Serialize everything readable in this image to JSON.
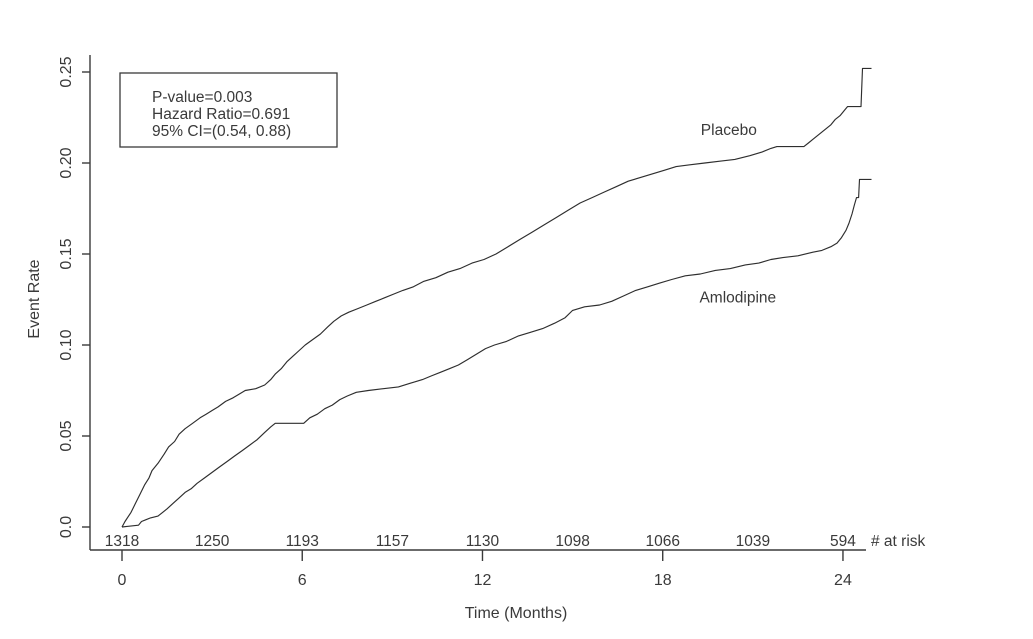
{
  "chart_data": {
    "type": "line",
    "title": "",
    "xlabel": "Time (Months)",
    "ylabel": "Event Rate",
    "xlim": [
      0,
      25.3
    ],
    "ylim": [
      0,
      0.25
    ],
    "grid": false,
    "legend_position": "inline-labels",
    "line_color": "#2e2e2e",
    "x_ticks": [
      {
        "value": 0,
        "label": "0"
      },
      {
        "value": 6,
        "label": "6"
      },
      {
        "value": 12,
        "label": "12"
      },
      {
        "value": 18,
        "label": "18"
      },
      {
        "value": 24,
        "label": "24"
      }
    ],
    "y_ticks": [
      {
        "value": 0.0,
        "label": "0.0"
      },
      {
        "value": 0.05,
        "label": "0.05"
      },
      {
        "value": 0.1,
        "label": "0.10"
      },
      {
        "value": 0.15,
        "label": "0.15"
      },
      {
        "value": 0.2,
        "label": "0.20"
      },
      {
        "value": 0.25,
        "label": "0.25"
      }
    ],
    "stats_box": {
      "lines": [
        "P-value=0.003",
        "Hazard Ratio=0.691",
        "95% CI=(0.54, 0.88)"
      ]
    },
    "number_at_risk": {
      "label": "# at risk",
      "months": [
        0,
        3,
        6,
        9,
        12,
        15,
        18,
        21,
        24
      ],
      "counts": [
        "1318",
        "1250",
        "1193",
        "1157",
        "1130",
        "1098",
        "1066",
        "1039",
        "594"
      ]
    },
    "series": [
      {
        "name": "Placebo",
        "label_pos": {
          "month": 20.2,
          "rate": 0.218
        },
        "points": [
          [
            0,
            0
          ],
          [
            0.1,
            0.003
          ],
          [
            0.3,
            0.008
          ],
          [
            0.45,
            0.013
          ],
          [
            0.6,
            0.018
          ],
          [
            0.75,
            0.023
          ],
          [
            0.9,
            0.027
          ],
          [
            1.0,
            0.031
          ],
          [
            1.2,
            0.035
          ],
          [
            1.4,
            0.04
          ],
          [
            1.55,
            0.044
          ],
          [
            1.75,
            0.047
          ],
          [
            1.9,
            0.051
          ],
          [
            2.1,
            0.054
          ],
          [
            2.35,
            0.057
          ],
          [
            2.6,
            0.06
          ],
          [
            2.8,
            0.062
          ],
          [
            3.0,
            0.064
          ],
          [
            3.2,
            0.066
          ],
          [
            3.45,
            0.069
          ],
          [
            3.7,
            0.071
          ],
          [
            3.9,
            0.073
          ],
          [
            4.1,
            0.075
          ],
          [
            4.45,
            0.076
          ],
          [
            4.75,
            0.078
          ],
          [
            4.95,
            0.081
          ],
          [
            5.1,
            0.084
          ],
          [
            5.3,
            0.087
          ],
          [
            5.5,
            0.091
          ],
          [
            5.7,
            0.094
          ],
          [
            5.9,
            0.097
          ],
          [
            6.1,
            0.1
          ],
          [
            6.35,
            0.103
          ],
          [
            6.6,
            0.106
          ],
          [
            6.85,
            0.11
          ],
          [
            7.05,
            0.113
          ],
          [
            7.3,
            0.116
          ],
          [
            7.55,
            0.118
          ],
          [
            7.85,
            0.12
          ],
          [
            8.15,
            0.122
          ],
          [
            8.45,
            0.124
          ],
          [
            8.75,
            0.126
          ],
          [
            9.05,
            0.128
          ],
          [
            9.35,
            0.13
          ],
          [
            9.7,
            0.132
          ],
          [
            10.05,
            0.135
          ],
          [
            10.45,
            0.137
          ],
          [
            10.85,
            0.14
          ],
          [
            11.25,
            0.142
          ],
          [
            11.65,
            0.145
          ],
          [
            12.05,
            0.147
          ],
          [
            12.45,
            0.15
          ],
          [
            12.85,
            0.154
          ],
          [
            13.25,
            0.158
          ],
          [
            13.65,
            0.162
          ],
          [
            14.05,
            0.166
          ],
          [
            14.45,
            0.17
          ],
          [
            14.85,
            0.174
          ],
          [
            15.25,
            0.178
          ],
          [
            15.65,
            0.181
          ],
          [
            16.05,
            0.184
          ],
          [
            16.45,
            0.187
          ],
          [
            16.85,
            0.19
          ],
          [
            17.25,
            0.192
          ],
          [
            17.65,
            0.194
          ],
          [
            18.05,
            0.196
          ],
          [
            18.45,
            0.198
          ],
          [
            18.9,
            0.199
          ],
          [
            19.4,
            0.2
          ],
          [
            19.9,
            0.201
          ],
          [
            20.4,
            0.202
          ],
          [
            20.9,
            0.204
          ],
          [
            21.3,
            0.206
          ],
          [
            21.6,
            0.208
          ],
          [
            21.8,
            0.209
          ],
          [
            22.7,
            0.209
          ],
          [
            22.85,
            0.211
          ],
          [
            23.0,
            0.213
          ],
          [
            23.15,
            0.215
          ],
          [
            23.3,
            0.217
          ],
          [
            23.45,
            0.219
          ],
          [
            23.6,
            0.221
          ],
          [
            23.75,
            0.224
          ],
          [
            23.9,
            0.226
          ],
          [
            24.05,
            0.229
          ],
          [
            24.15,
            0.231
          ],
          [
            24.6,
            0.231
          ],
          [
            24.65,
            0.252
          ],
          [
            24.95,
            0.252
          ]
        ]
      },
      {
        "name": "Amlodipine",
        "label_pos": {
          "month": 20.5,
          "rate": 0.126
        },
        "points": [
          [
            0,
            0
          ],
          [
            0.55,
            0.001
          ],
          [
            0.65,
            0.003
          ],
          [
            0.8,
            0.004
          ],
          [
            0.95,
            0.005
          ],
          [
            1.2,
            0.006
          ],
          [
            1.35,
            0.008
          ],
          [
            1.5,
            0.01
          ],
          [
            1.7,
            0.013
          ],
          [
            1.9,
            0.016
          ],
          [
            2.1,
            0.019
          ],
          [
            2.3,
            0.021
          ],
          [
            2.5,
            0.024
          ],
          [
            2.75,
            0.027
          ],
          [
            3.0,
            0.03
          ],
          [
            3.25,
            0.033
          ],
          [
            3.5,
            0.036
          ],
          [
            3.75,
            0.039
          ],
          [
            4.0,
            0.042
          ],
          [
            4.25,
            0.045
          ],
          [
            4.5,
            0.048
          ],
          [
            4.75,
            0.052
          ],
          [
            4.95,
            0.055
          ],
          [
            5.1,
            0.057
          ],
          [
            6.05,
            0.057
          ],
          [
            6.25,
            0.06
          ],
          [
            6.5,
            0.062
          ],
          [
            6.75,
            0.065
          ],
          [
            7.0,
            0.067
          ],
          [
            7.25,
            0.07
          ],
          [
            7.5,
            0.072
          ],
          [
            7.8,
            0.074
          ],
          [
            8.2,
            0.075
          ],
          [
            8.7,
            0.076
          ],
          [
            9.2,
            0.077
          ],
          [
            9.6,
            0.079
          ],
          [
            10.0,
            0.081
          ],
          [
            10.3,
            0.083
          ],
          [
            10.6,
            0.085
          ],
          [
            10.9,
            0.087
          ],
          [
            11.2,
            0.089
          ],
          [
            11.5,
            0.092
          ],
          [
            11.8,
            0.095
          ],
          [
            12.1,
            0.098
          ],
          [
            12.4,
            0.1
          ],
          [
            12.8,
            0.102
          ],
          [
            13.2,
            0.105
          ],
          [
            13.6,
            0.107
          ],
          [
            14.0,
            0.109
          ],
          [
            14.4,
            0.112
          ],
          [
            14.75,
            0.115
          ],
          [
            15.0,
            0.119
          ],
          [
            15.4,
            0.121
          ],
          [
            15.9,
            0.122
          ],
          [
            16.3,
            0.124
          ],
          [
            16.7,
            0.127
          ],
          [
            17.1,
            0.13
          ],
          [
            17.5,
            0.132
          ],
          [
            17.9,
            0.134
          ],
          [
            18.3,
            0.136
          ],
          [
            18.75,
            0.138
          ],
          [
            19.25,
            0.139
          ],
          [
            19.75,
            0.141
          ],
          [
            20.25,
            0.142
          ],
          [
            20.75,
            0.144
          ],
          [
            21.2,
            0.145
          ],
          [
            21.6,
            0.147
          ],
          [
            22.0,
            0.148
          ],
          [
            22.5,
            0.149
          ],
          [
            23.0,
            0.151
          ],
          [
            23.3,
            0.152
          ],
          [
            23.6,
            0.154
          ],
          [
            23.8,
            0.156
          ],
          [
            23.95,
            0.159
          ],
          [
            24.1,
            0.163
          ],
          [
            24.2,
            0.167
          ],
          [
            24.3,
            0.172
          ],
          [
            24.38,
            0.177
          ],
          [
            24.45,
            0.181
          ],
          [
            24.52,
            0.181
          ],
          [
            24.55,
            0.191
          ],
          [
            24.95,
            0.191
          ]
        ]
      }
    ]
  }
}
